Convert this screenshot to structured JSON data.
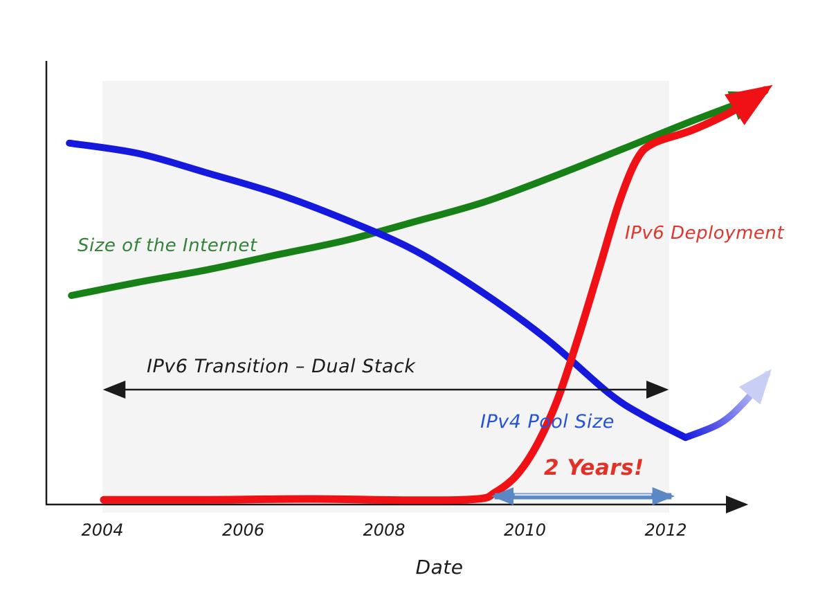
{
  "chart_data": {
    "type": "line",
    "title": "",
    "xlabel": "Date",
    "ylabel": "",
    "grid": false,
    "x_ticks": [
      2004,
      2006,
      2008,
      2010,
      2012
    ],
    "x_tick_labels": [
      "2004",
      "2006",
      "2008",
      "2010",
      "2012"
    ],
    "x_range_years": [
      2003.3,
      2013.6
    ],
    "y_range_relative": [
      0,
      105
    ],
    "plot_band": {
      "from_year": 2004.0,
      "to_year": 2012.05,
      "color": "#f4f4f4"
    },
    "axis_color": "#1b1b1b",
    "series": [
      {
        "name": "Size of the Internet",
        "color": "#178017",
        "style": "thick hand-drawn line, arrowhead at right end",
        "points": [
          [
            2003.56,
            50.5
          ],
          [
            2004.51,
            53.7
          ],
          [
            2005.49,
            56.7
          ],
          [
            2006.48,
            60.3
          ],
          [
            2007.46,
            63.8
          ],
          [
            2008.44,
            68.3
          ],
          [
            2009.42,
            73.0
          ],
          [
            2010.41,
            79.2
          ],
          [
            2011.39,
            85.8
          ],
          [
            2012.37,
            92.5
          ],
          [
            2013.36,
            98.8
          ]
        ]
      },
      {
        "name": "IPv4 Pool Size",
        "color": "#1519de",
        "fade_color": "#dfe3fb",
        "style": "thick line declining, dips then curls up fading into pale arrowhead",
        "points": [
          [
            2003.53,
            87.2
          ],
          [
            2004.51,
            84.7
          ],
          [
            2005.49,
            80.0
          ],
          [
            2006.48,
            75.0
          ],
          [
            2007.46,
            68.7
          ],
          [
            2008.44,
            61.3
          ],
          [
            2009.42,
            51.0
          ],
          [
            2010.31,
            40.0
          ],
          [
            2011.19,
            27.0
          ],
          [
            2011.69,
            21.5
          ],
          [
            2012.28,
            16.3
          ]
        ],
        "tail_points": [
          [
            2012.28,
            16.3
          ],
          [
            2012.77,
            19.7
          ],
          [
            2013.11,
            24.7
          ],
          [
            2013.44,
            31.5
          ]
        ]
      },
      {
        "name": "IPv6 Deployment",
        "color": "#ef1116",
        "style": "flat near zero then steep rise, arrowhead at right end",
        "points": [
          [
            2004.02,
            1.3
          ],
          [
            2005.49,
            1.3
          ],
          [
            2006.97,
            1.5
          ],
          [
            2008.44,
            1.2
          ],
          [
            2009.33,
            1.5
          ],
          [
            2009.57,
            3.0
          ],
          [
            2009.87,
            7.0
          ],
          [
            2010.16,
            14.2
          ],
          [
            2010.46,
            25.3
          ],
          [
            2010.75,
            40.0
          ],
          [
            2011.05,
            56.7
          ],
          [
            2011.34,
            73.0
          ],
          [
            2011.59,
            83.3
          ],
          [
            2011.83,
            87.2
          ],
          [
            2012.37,
            90.3
          ],
          [
            2012.96,
            95.0
          ],
          [
            2013.41,
            100.0
          ]
        ]
      }
    ],
    "annotations": {
      "series_labels": [
        {
          "text": "Size of the Internet",
          "color": "#35823a"
        },
        {
          "text": "IPv6 Deployment",
          "color": "#e0352b"
        },
        {
          "text": "IPv4 Pool Size",
          "color": "#2553d4"
        }
      ],
      "transition_arrow": {
        "label": "IPv6 Transition – Dual Stack",
        "label_color": "#1b1b1b",
        "color": "#1b1b1b",
        "from_year": 2004.0,
        "to_year": 2012.05
      },
      "years_arrow": {
        "label": "2 Years!",
        "label_color": "#e33127",
        "color": "#5b87c5",
        "from_year": 2009.52,
        "to_year": 2012.13
      }
    }
  }
}
